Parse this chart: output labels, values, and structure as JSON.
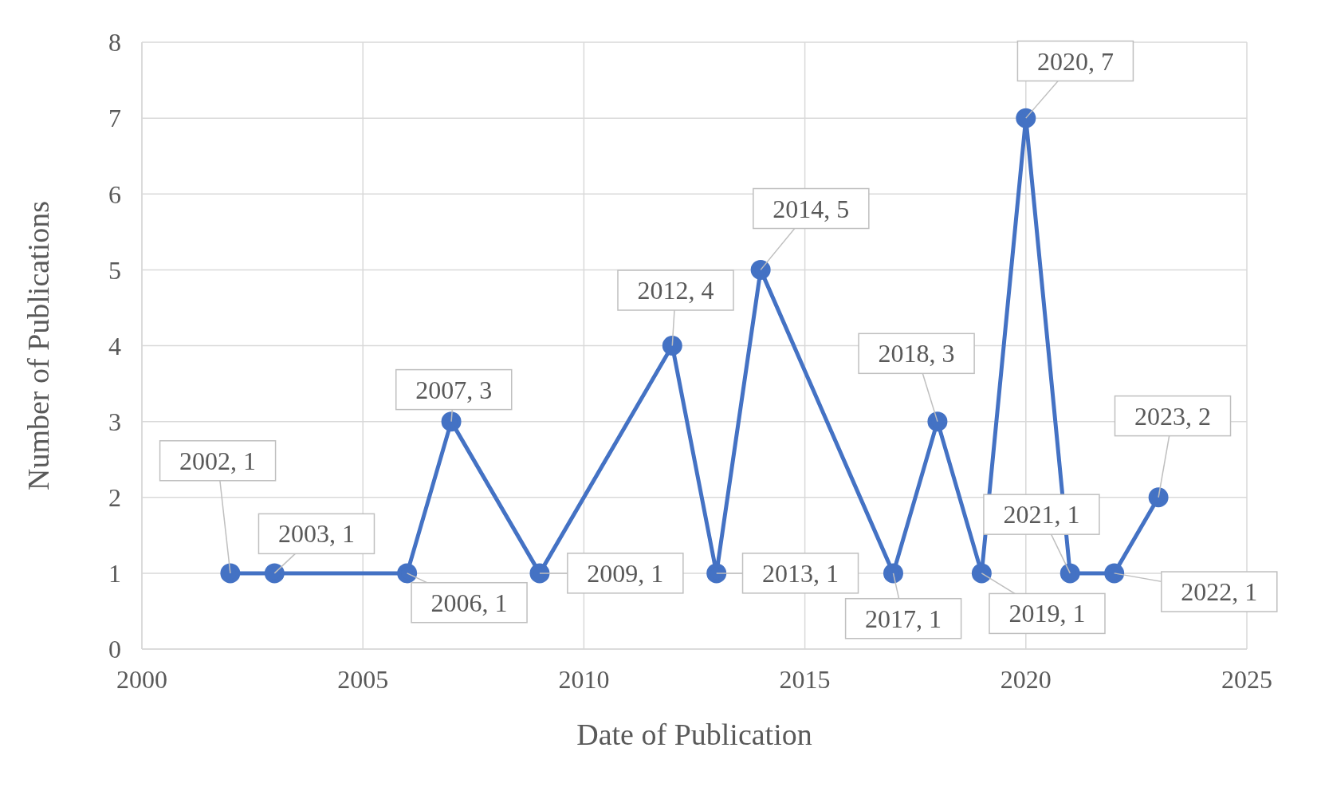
{
  "chart_data": {
    "type": "line",
    "xlabel": "Date of Publication",
    "ylabel": "Number of Publications",
    "x": [
      2002,
      2003,
      2006,
      2007,
      2009,
      2012,
      2013,
      2014,
      2017,
      2018,
      2019,
      2020,
      2021,
      2022,
      2023
    ],
    "series": [
      {
        "color": "#4472c4",
        "values": [
          1,
          1,
          1,
          3,
          1,
          4,
          1,
          5,
          1,
          3,
          1,
          7,
          1,
          1,
          2
        ],
        "value_labels": [
          "2002, 1",
          "2003, 1",
          "2006, 1",
          "2007, 3",
          "2009, 1",
          "2012, 4",
          "2013, 1",
          "2014, 5",
          "2017, 1",
          "2018, 3",
          "2019, 1",
          "2020, 7",
          "2021, 1",
          "2022, 1",
          "2023, 2"
        ]
      }
    ],
    "xlim": [
      2000,
      2025
    ],
    "xticks": [
      2000,
      2005,
      2010,
      2015,
      2020,
      2025
    ],
    "ylim": [
      0,
      8
    ],
    "yticks": [
      0,
      1,
      2,
      3,
      4,
      5,
      6,
      7,
      8
    ],
    "grid": true,
    "marker": "circle",
    "line_style": "solid"
  }
}
